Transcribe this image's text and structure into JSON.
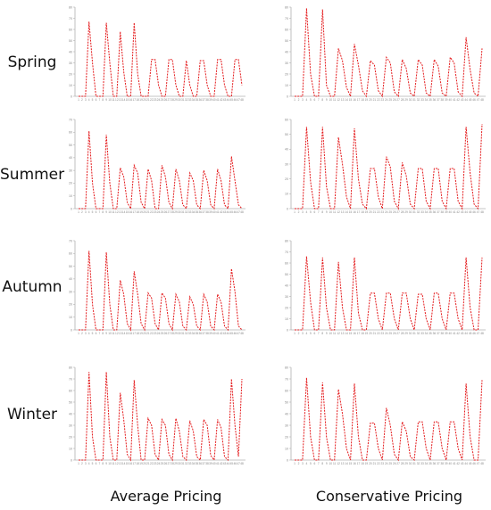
{
  "row_labels": [
    "Spring",
    "Summer",
    "Autumn",
    "Winter"
  ],
  "column_labels": [
    "Average Pricing",
    "Conservative Pricing"
  ],
  "colors": {
    "line": "#e41a1c",
    "axis": "#b0b0b0",
    "tick_text": "#888888"
  },
  "chart_data": [
    {
      "type": "line",
      "row": "Spring",
      "column": "Average Pricing",
      "ylim": [
        0,
        80
      ],
      "yticks": [
        0,
        10,
        20,
        30,
        40,
        50,
        60,
        70,
        80
      ],
      "x": [
        1,
        2,
        3,
        4,
        5,
        6,
        7,
        8,
        9,
        10,
        11,
        12,
        13,
        14,
        15,
        16,
        17,
        18,
        19,
        20,
        21,
        22,
        23,
        24,
        25,
        26,
        27,
        28,
        29,
        30,
        31,
        32,
        33,
        34,
        35,
        36,
        37,
        38,
        39,
        40,
        41,
        42,
        43,
        44,
        45,
        46,
        47,
        48
      ],
      "values": [
        0,
        0,
        0,
        67,
        30,
        0,
        0,
        0,
        66,
        30,
        0,
        0,
        58,
        22,
        0,
        0,
        66,
        20,
        0,
        0,
        0,
        33,
        33,
        10,
        0,
        0,
        33,
        33,
        10,
        0,
        0,
        32,
        10,
        0,
        0,
        32,
        32,
        10,
        0,
        0,
        33,
        33,
        10,
        0,
        0,
        33,
        33,
        10
      ]
    },
    {
      "type": "line",
      "row": "Spring",
      "column": "Conservative Pricing",
      "ylim": [
        0,
        80
      ],
      "yticks": [
        0,
        10,
        20,
        30,
        40,
        50,
        60,
        70,
        80
      ],
      "x": [
        1,
        2,
        3,
        4,
        5,
        6,
        7,
        8,
        9,
        10,
        11,
        12,
        13,
        14,
        15,
        16,
        17,
        18,
        19,
        20,
        21,
        22,
        23,
        24,
        25,
        26,
        27,
        28,
        29,
        30,
        31,
        32,
        33,
        34,
        35,
        36,
        37,
        38,
        39,
        40,
        41,
        42,
        43,
        44,
        45,
        46,
        47,
        48
      ],
      "values": [
        0,
        0,
        0,
        79,
        20,
        0,
        0,
        78,
        10,
        0,
        0,
        43,
        32,
        8,
        0,
        47,
        28,
        5,
        0,
        32,
        28,
        5,
        0,
        35,
        30,
        4,
        0,
        33,
        25,
        3,
        0,
        33,
        28,
        3,
        0,
        33,
        27,
        3,
        0,
        35,
        30,
        4,
        0,
        53,
        24,
        3,
        0,
        43
      ]
    },
    {
      "type": "line",
      "row": "Summer",
      "column": "Average Pricing",
      "ylim": [
        0,
        70
      ],
      "yticks": [
        0,
        10,
        20,
        30,
        40,
        50,
        60,
        70
      ],
      "x": [
        1,
        2,
        3,
        4,
        5,
        6,
        7,
        8,
        9,
        10,
        11,
        12,
        13,
        14,
        15,
        16,
        17,
        18,
        19,
        20,
        21,
        22,
        23,
        24,
        25,
        26,
        27,
        28,
        29,
        30,
        31,
        32,
        33,
        34,
        35,
        36,
        37,
        38,
        39,
        40,
        41,
        42,
        43,
        44,
        45,
        46,
        47,
        48
      ],
      "values": [
        0,
        0,
        0,
        61,
        20,
        0,
        0,
        0,
        58,
        20,
        0,
        0,
        32,
        25,
        5,
        0,
        34,
        28,
        5,
        0,
        31,
        22,
        0,
        0,
        34,
        25,
        5,
        0,
        31,
        22,
        3,
        0,
        28,
        22,
        3,
        0,
        30,
        22,
        3,
        0,
        31,
        22,
        3,
        0,
        41,
        22,
        3,
        0
      ]
    },
    {
      "type": "line",
      "row": "Summer",
      "column": "Conservative Pricing",
      "ylim": [
        0,
        60
      ],
      "yticks": [
        0,
        10,
        20,
        30,
        40,
        50,
        60
      ],
      "x": [
        1,
        2,
        3,
        4,
        5,
        6,
        7,
        8,
        9,
        10,
        11,
        12,
        13,
        14,
        15,
        16,
        17,
        18,
        19,
        20,
        21,
        22,
        23,
        24,
        25,
        26,
        27,
        28,
        29,
        30,
        31,
        32,
        33,
        34,
        35,
        36,
        37,
        38,
        39,
        40,
        41,
        42,
        43,
        44,
        45,
        46,
        47,
        48
      ],
      "values": [
        0,
        0,
        0,
        55,
        18,
        0,
        0,
        55,
        15,
        0,
        0,
        48,
        30,
        8,
        0,
        54,
        20,
        3,
        0,
        27,
        27,
        8,
        0,
        35,
        28,
        5,
        0,
        31,
        22,
        3,
        0,
        27,
        27,
        5,
        0,
        27,
        27,
        5,
        0,
        27,
        27,
        5,
        0,
        55,
        24,
        3,
        0,
        57
      ]
    },
    {
      "type": "line",
      "row": "Autumn",
      "column": "Average Pricing",
      "ylim": [
        0,
        70
      ],
      "yticks": [
        0,
        10,
        20,
        30,
        40,
        50,
        60,
        70
      ],
      "x": [
        1,
        2,
        3,
        4,
        5,
        6,
        7,
        8,
        9,
        10,
        11,
        12,
        13,
        14,
        15,
        16,
        17,
        18,
        19,
        20,
        21,
        22,
        23,
        24,
        25,
        26,
        27,
        28,
        29,
        30,
        31,
        32,
        33,
        34,
        35,
        36,
        37,
        38,
        39,
        40,
        41,
        42,
        43,
        44,
        45,
        46,
        47,
        48
      ],
      "values": [
        0,
        0,
        0,
        62,
        20,
        0,
        0,
        0,
        61,
        20,
        0,
        0,
        39,
        28,
        5,
        0,
        46,
        28,
        5,
        0,
        29,
        25,
        5,
        0,
        29,
        25,
        5,
        0,
        28,
        22,
        3,
        0,
        26,
        20,
        3,
        0,
        28,
        22,
        3,
        0,
        28,
        22,
        3,
        0,
        48,
        30,
        3,
        0
      ]
    },
    {
      "type": "line",
      "row": "Autumn",
      "column": "Conservative Pricing",
      "ylim": [
        0,
        80
      ],
      "yticks": [
        0,
        10,
        20,
        30,
        40,
        50,
        60,
        70,
        80
      ],
      "x": [
        1,
        2,
        3,
        4,
        5,
        6,
        7,
        8,
        9,
        10,
        11,
        12,
        13,
        14,
        15,
        16,
        17,
        18,
        19,
        20,
        21,
        22,
        23,
        24,
        25,
        26,
        27,
        28,
        29,
        30,
        31,
        32,
        33,
        34,
        35,
        36,
        37,
        38,
        39,
        40,
        41,
        42,
        43,
        44,
        45,
        46,
        47,
        48
      ],
      "values": [
        0,
        0,
        0,
        66,
        25,
        0,
        0,
        65,
        20,
        0,
        0,
        61,
        20,
        0,
        0,
        65,
        15,
        0,
        0,
        33,
        33,
        10,
        0,
        33,
        33,
        10,
        0,
        33,
        33,
        10,
        0,
        32,
        32,
        10,
        0,
        33,
        33,
        10,
        0,
        33,
        33,
        10,
        0,
        65,
        20,
        0,
        0,
        65
      ]
    },
    {
      "type": "line",
      "row": "Winter",
      "column": "Average Pricing",
      "ylim": [
        0,
        80
      ],
      "yticks": [
        0,
        10,
        20,
        30,
        40,
        50,
        60,
        70,
        80
      ],
      "x": [
        1,
        2,
        3,
        4,
        5,
        6,
        7,
        8,
        9,
        10,
        11,
        12,
        13,
        14,
        15,
        16,
        17,
        18,
        19,
        20,
        21,
        22,
        23,
        24,
        25,
        26,
        27,
        28,
        29,
        30,
        31,
        32,
        33,
        34,
        35,
        36,
        37,
        38,
        39,
        40,
        41,
        42,
        43,
        44,
        45,
        46,
        47,
        48
      ],
      "values": [
        0,
        0,
        0,
        76,
        20,
        0,
        0,
        0,
        76,
        20,
        0,
        0,
        58,
        35,
        5,
        0,
        69,
        30,
        0,
        0,
        36,
        30,
        5,
        0,
        35,
        30,
        5,
        0,
        36,
        25,
        3,
        0,
        34,
        25,
        3,
        0,
        35,
        30,
        4,
        0,
        35,
        28,
        3,
        0,
        70,
        30,
        3,
        70
      ]
    },
    {
      "type": "line",
      "row": "Winter",
      "column": "Conservative Pricing",
      "ylim": [
        0,
        80
      ],
      "yticks": [
        0,
        10,
        20,
        30,
        40,
        50,
        60,
        70,
        80
      ],
      "x": [
        1,
        2,
        3,
        4,
        5,
        6,
        7,
        8,
        9,
        10,
        11,
        12,
        13,
        14,
        15,
        16,
        17,
        18,
        19,
        20,
        21,
        22,
        23,
        24,
        25,
        26,
        27,
        28,
        29,
        30,
        31,
        32,
        33,
        34,
        35,
        36,
        37,
        38,
        39,
        40,
        41,
        42,
        43,
        44,
        45,
        46,
        47,
        48
      ],
      "values": [
        0,
        0,
        0,
        71,
        20,
        0,
        0,
        67,
        20,
        0,
        0,
        61,
        40,
        10,
        0,
        66,
        20,
        0,
        0,
        32,
        32,
        10,
        0,
        45,
        30,
        5,
        0,
        33,
        25,
        3,
        0,
        33,
        33,
        10,
        0,
        33,
        33,
        10,
        0,
        33,
        33,
        10,
        0,
        66,
        20,
        0,
        0,
        69
      ]
    }
  ]
}
